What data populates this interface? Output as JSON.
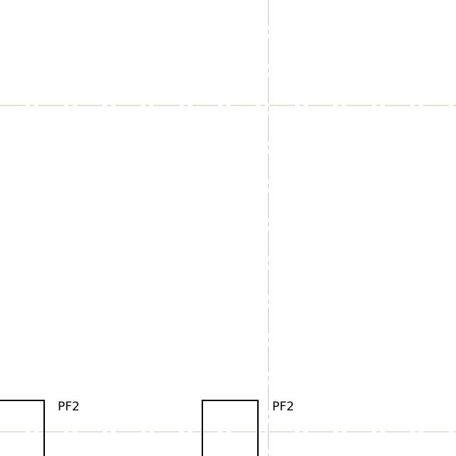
{
  "drawing": {
    "background_color": "#ffffff",
    "grid_line_color": "#c9c8b4",
    "element_color": "#000000",
    "text_color": "#000000",
    "footings": [
      {
        "tag": "PF2"
      },
      {
        "tag": "PF2"
      }
    ]
  }
}
